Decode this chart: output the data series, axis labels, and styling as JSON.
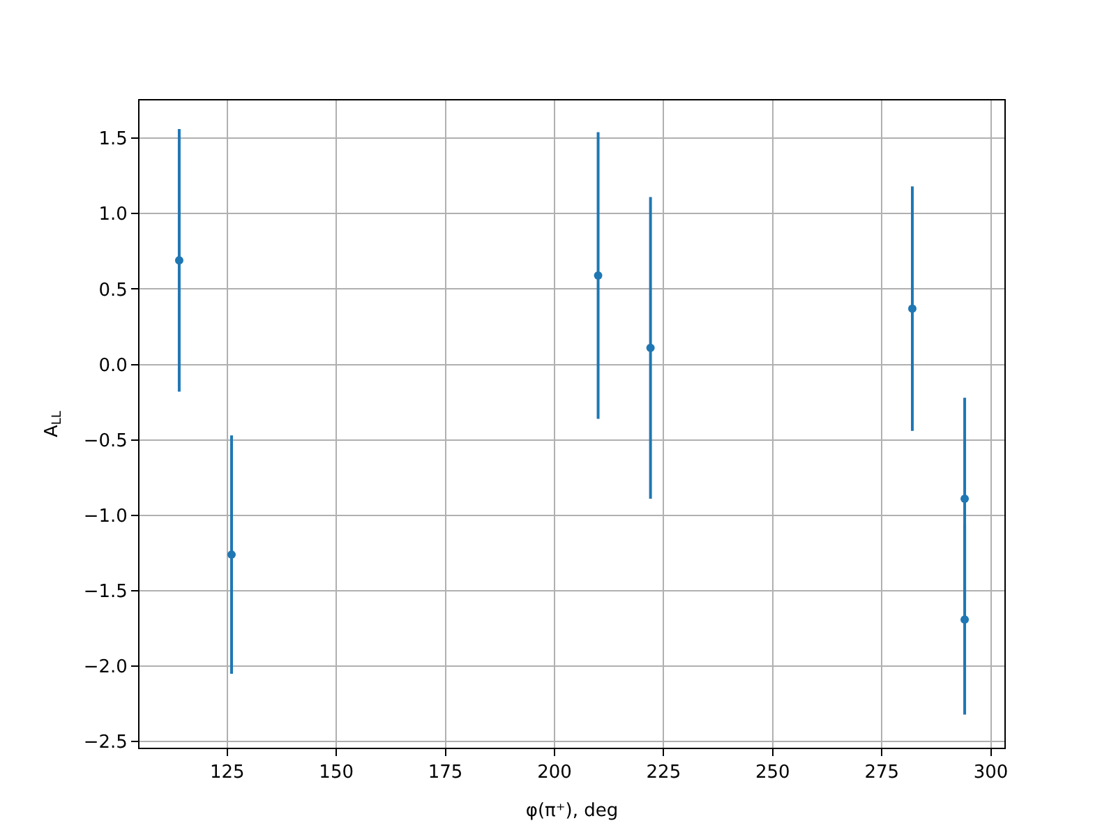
{
  "chart_data": {
    "type": "scatter",
    "xlabel": "φ(π⁺), deg",
    "ylabel": "A$_{LL}$",
    "x": [
      114,
      126,
      210,
      222,
      282,
      294,
      294
    ],
    "values": [
      0.69,
      -1.26,
      0.59,
      0.11,
      0.37,
      -0.89,
      -1.69
    ],
    "errors": [
      0.87,
      0.79,
      0.95,
      1.0,
      0.81,
      0.67,
      0.63
    ],
    "color": "#1f77b4",
    "marker": "circle",
    "xlim": [
      104.9,
      303.1
    ],
    "ylim": [
      -2.54,
      1.75
    ],
    "xticks": [
      125,
      150,
      175,
      200,
      225,
      250,
      275,
      300
    ],
    "yticks": [
      {
        "value": -2.5,
        "label": "−2.5"
      },
      {
        "value": -2,
        "label": "−2.0"
      },
      {
        "value": -1.5,
        "label": "−1.5"
      },
      {
        "value": -1,
        "label": "−1.0"
      },
      {
        "value": -0.5,
        "label": "−0.5"
      },
      {
        "value": 0,
        "label": "0.0"
      },
      {
        "value": 0.5,
        "label": "0.5"
      },
      {
        "value": 1,
        "label": "1.0"
      },
      {
        "value": 1.5,
        "label": "1.5"
      }
    ],
    "grid": true,
    "legend": false
  }
}
